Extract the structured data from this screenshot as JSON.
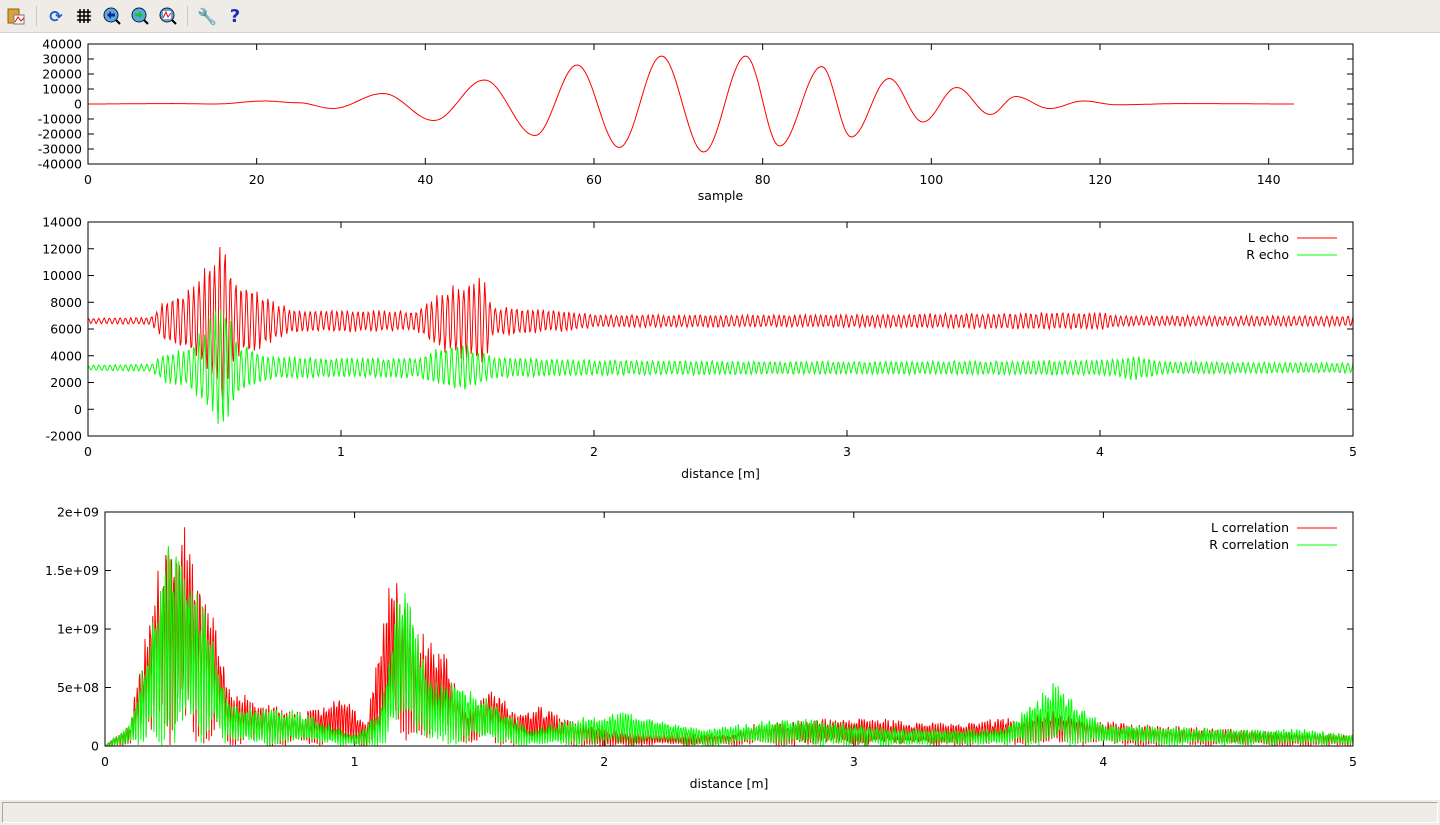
{
  "toolbar": {
    "items": [
      {
        "name": "copy-to-clipboard-icon",
        "tooltip": ""
      },
      {
        "name": "replot-icon"
      },
      {
        "name": "grid-icon"
      },
      {
        "name": "zoom-previous-icon"
      },
      {
        "name": "zoom-next-icon"
      },
      {
        "name": "autoscale-icon"
      },
      {
        "name": "options-wrench-icon"
      },
      {
        "name": "help-icon"
      }
    ]
  },
  "colors": {
    "L": "#ff0000",
    "R": "#00ff00",
    "axis": "#000000"
  },
  "chart_data": [
    {
      "type": "line",
      "xlabel": "sample",
      "ylabel": "",
      "xlim": [
        0,
        150
      ],
      "ylim": [
        -40000,
        40000
      ],
      "xticks": [
        "0",
        "20",
        "40",
        "60",
        "80",
        "100",
        "120",
        "140"
      ],
      "yticks": [
        "-40000",
        "-30000",
        "-20000",
        "-10000",
        "0",
        "10000",
        "20000",
        "30000",
        "40000"
      ],
      "grid": false,
      "series": [
        {
          "color": "#ff0000",
          "points": [
            [
              0,
              0
            ],
            [
              10,
              300
            ],
            [
              15,
              0
            ],
            [
              21,
              2000
            ],
            [
              25,
              800
            ],
            [
              29,
              -3000
            ],
            [
              35,
              7000
            ],
            [
              41,
              -11000
            ],
            [
              47,
              16000
            ],
            [
              53,
              -21000
            ],
            [
              58,
              26000
            ],
            [
              63,
              -29000
            ],
            [
              68,
              32000
            ],
            [
              73,
              -32000
            ],
            [
              78,
              32000
            ],
            [
              82,
              -28000
            ],
            [
              87,
              25000
            ],
            [
              90.5,
              -22000
            ],
            [
              95,
              17000
            ],
            [
              99,
              -12000
            ],
            [
              103,
              11000
            ],
            [
              107,
              -7000
            ],
            [
              110,
              5000
            ],
            [
              114,
              -3000
            ],
            [
              118,
              2000
            ],
            [
              122,
              -500
            ],
            [
              130,
              300
            ],
            [
              143,
              0
            ]
          ]
        }
      ]
    },
    {
      "type": "line",
      "xlabel": "distance [m]",
      "ylabel": "",
      "xlim": [
        0,
        5
      ],
      "ylim": [
        -2000,
        14000
      ],
      "xticks": [
        "0",
        "1",
        "2",
        "3",
        "4",
        "5"
      ],
      "yticks": [
        "-2000",
        "0",
        "2000",
        "4000",
        "6000",
        "8000",
        "10000",
        "12000",
        "14000"
      ],
      "grid": false,
      "legend": "top-right",
      "series": [
        {
          "name": "L echo",
          "color": "#ff0000",
          "baseline": 6600,
          "envelope": [
            [
              0,
              200
            ],
            [
              0.25,
              300
            ],
            [
              0.3,
              1500
            ],
            [
              0.4,
              2500
            ],
            [
              0.5,
              5000
            ],
            [
              0.53,
              6800
            ],
            [
              0.58,
              3000
            ],
            [
              0.7,
              2000
            ],
            [
              0.8,
              900
            ],
            [
              1.3,
              800
            ],
            [
              1.4,
              2500
            ],
            [
              1.5,
              3000
            ],
            [
              1.56,
              3700
            ],
            [
              1.6,
              1200
            ],
            [
              1.9,
              800
            ],
            [
              2.0,
              500
            ],
            [
              3.0,
              500
            ],
            [
              4.0,
              700
            ],
            [
              4.1,
              400
            ],
            [
              5.0,
              400
            ]
          ]
        },
        {
          "name": "R echo",
          "color": "#00ff00",
          "baseline": 3100,
          "envelope": [
            [
              0,
              200
            ],
            [
              0.25,
              300
            ],
            [
              0.3,
              1200
            ],
            [
              0.4,
              1500
            ],
            [
              0.5,
              4500
            ],
            [
              0.54,
              4900
            ],
            [
              0.6,
              2000
            ],
            [
              0.7,
              1000
            ],
            [
              0.9,
              800
            ],
            [
              1.3,
              800
            ],
            [
              1.4,
              1700
            ],
            [
              1.5,
              1800
            ],
            [
              1.6,
              900
            ],
            [
              2.0,
              600
            ],
            [
              3.0,
              500
            ],
            [
              4.0,
              600
            ],
            [
              4.15,
              1000
            ],
            [
              4.25,
              500
            ],
            [
              5.0,
              400
            ]
          ]
        }
      ]
    },
    {
      "type": "line",
      "xlabel": "distance [m]",
      "ylabel": "",
      "xlim": [
        0,
        5
      ],
      "ylim": [
        0,
        2000000000
      ],
      "xticks": [
        "0",
        "1",
        "2",
        "3",
        "4",
        "5"
      ],
      "yticks": [
        "0",
        "5e+08",
        "1e+09",
        "1.5e+09",
        "2e+09"
      ],
      "grid": false,
      "legend": "top-right",
      "series": [
        {
          "name": "L correlation",
          "color": "#ff0000",
          "envelope": [
            [
              0,
              0
            ],
            [
              0.1,
              200000000
            ],
            [
              0.2,
              1500000000
            ],
            [
              0.3,
              2000000000
            ],
            [
              0.4,
              1500000000
            ],
            [
              0.5,
              500000000
            ],
            [
              0.6,
              400000000
            ],
            [
              0.8,
              300000000
            ],
            [
              0.95,
              450000000
            ],
            [
              1.05,
              200000000
            ],
            [
              1.15,
              1700000000
            ],
            [
              1.25,
              1000000000
            ],
            [
              1.35,
              900000000
            ],
            [
              1.45,
              300000000
            ],
            [
              1.55,
              550000000
            ],
            [
              1.65,
              300000000
            ],
            [
              1.75,
              350000000
            ],
            [
              1.9,
              200000000
            ],
            [
              2.0,
              150000000
            ],
            [
              2.5,
              100000000
            ],
            [
              2.6,
              200000000
            ],
            [
              3.0,
              250000000
            ],
            [
              3.4,
              200000000
            ],
            [
              3.8,
              300000000
            ],
            [
              4.1,
              200000000
            ],
            [
              4.5,
              150000000
            ],
            [
              5.0,
              100000000
            ]
          ]
        },
        {
          "name": "R correlation",
          "color": "#00ff00",
          "envelope": [
            [
              0,
              0
            ],
            [
              0.1,
              200000000
            ],
            [
              0.25,
              1800000000
            ],
            [
              0.4,
              1300000000
            ],
            [
              0.5,
              400000000
            ],
            [
              0.6,
              350000000
            ],
            [
              0.8,
              300000000
            ],
            [
              1.0,
              100000000
            ],
            [
              1.1,
              300000000
            ],
            [
              1.19,
              1500000000
            ],
            [
              1.3,
              600000000
            ],
            [
              1.4,
              550000000
            ],
            [
              1.55,
              400000000
            ],
            [
              1.7,
              150000000
            ],
            [
              1.9,
              250000000
            ],
            [
              2.1,
              300000000
            ],
            [
              2.4,
              150000000
            ],
            [
              2.75,
              250000000
            ],
            [
              3.2,
              150000000
            ],
            [
              3.6,
              150000000
            ],
            [
              3.8,
              550000000
            ],
            [
              4.0,
              200000000
            ],
            [
              4.5,
              150000000
            ],
            [
              4.8,
              150000000
            ],
            [
              5.0,
              100000000
            ]
          ]
        }
      ]
    }
  ]
}
